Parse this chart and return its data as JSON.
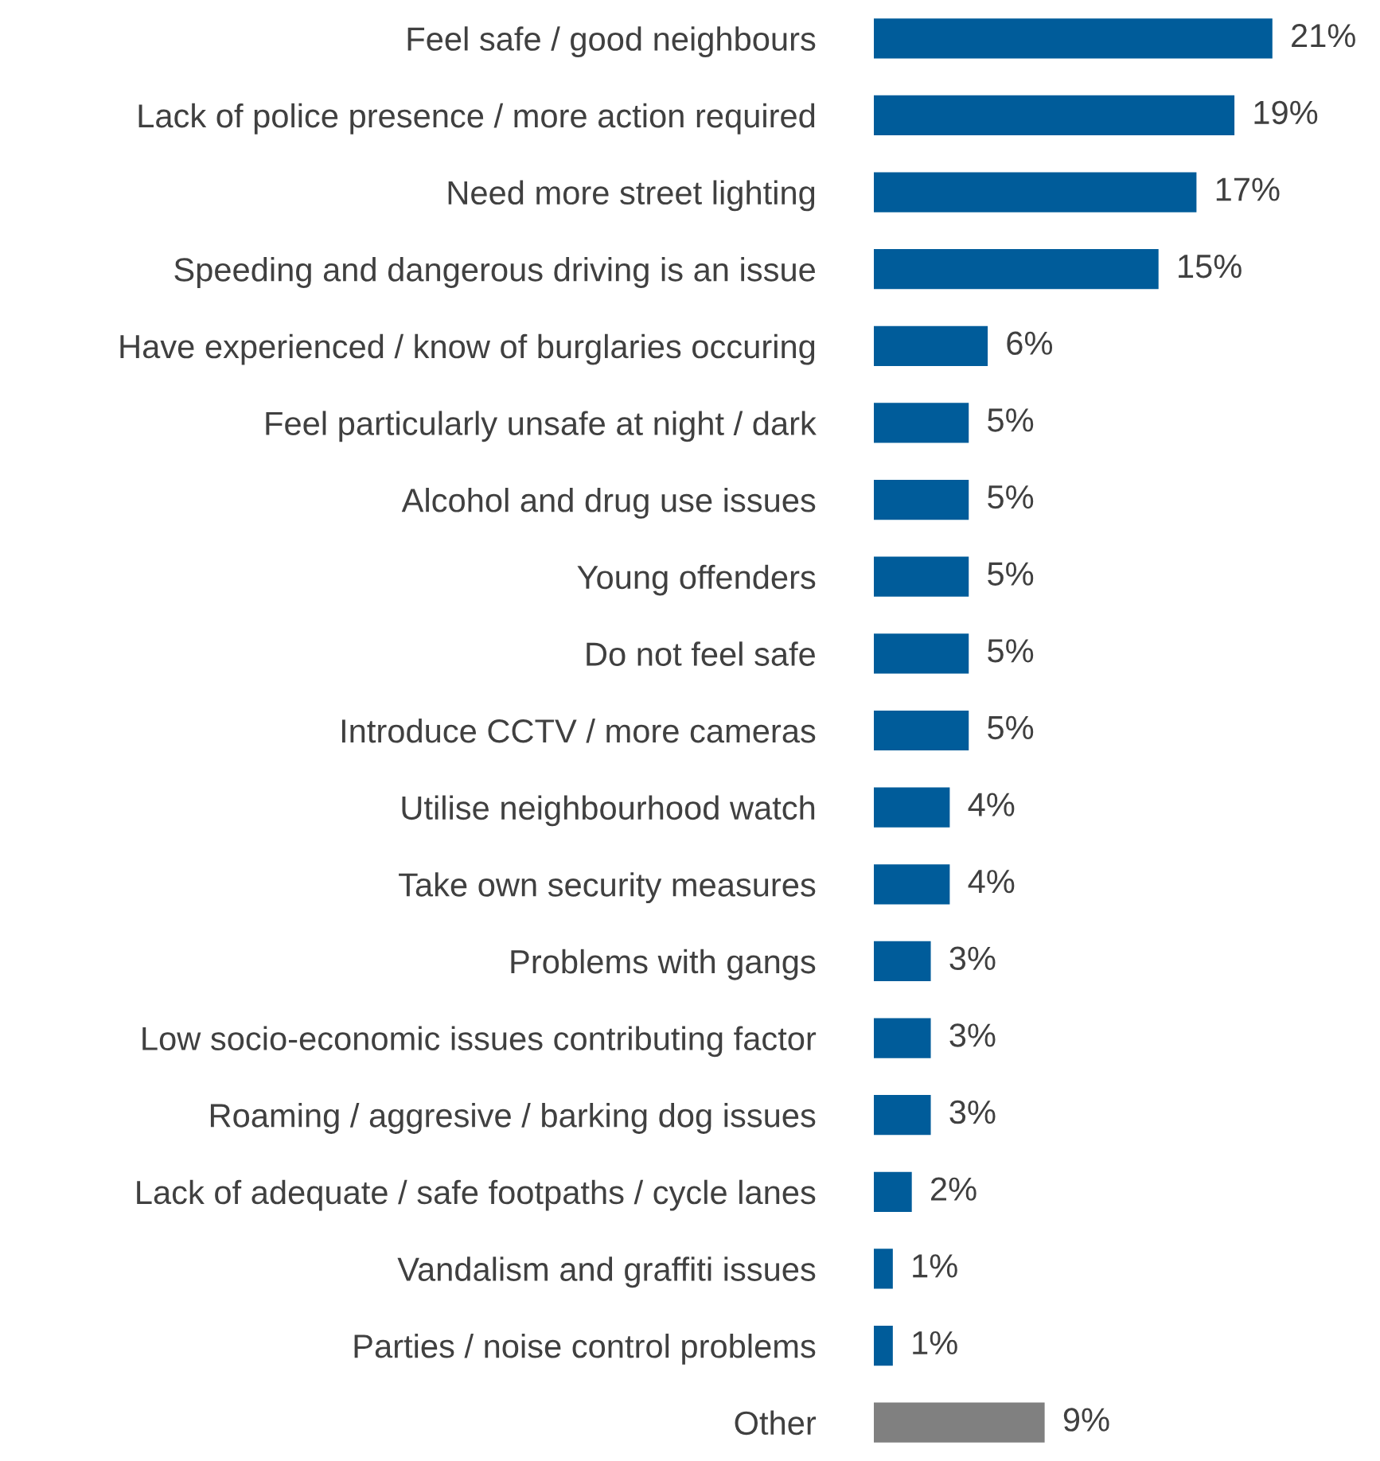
{
  "chart_data": {
    "type": "bar",
    "orientation": "horizontal",
    "categories": [
      "Feel safe / good neighbours",
      "Lack of police presence / more action required",
      "Need more street lighting",
      "Speeding and dangerous driving is an issue",
      "Have experienced / know of burglaries occuring",
      "Feel particularly unsafe at night / dark",
      "Alcohol and drug use issues",
      "Young offenders",
      "Do not feel safe",
      "Introduce CCTV / more cameras",
      "Utilise neighbourhood watch",
      "Take own security measures",
      "Problems with gangs",
      "Low socio-economic issues contributing factor",
      "Roaming / aggresive / barking dog issues",
      "Lack of adequate / safe footpaths / cycle lanes",
      "Vandalism and graffiti issues",
      "Parties / noise control problems",
      "Other"
    ],
    "values": [
      21,
      19,
      17,
      15,
      6,
      5,
      5,
      5,
      5,
      5,
      4,
      4,
      3,
      3,
      3,
      2,
      1,
      1,
      9
    ],
    "value_labels": [
      "21%",
      "19%",
      "17%",
      "15%",
      "6%",
      "5%",
      "5%",
      "5%",
      "5%",
      "5%",
      "4%",
      "4%",
      "3%",
      "3%",
      "3%",
      "2%",
      "1%",
      "1%",
      "9%"
    ],
    "colors": [
      "#005c9a",
      "#005c9a",
      "#005c9a",
      "#005c9a",
      "#005c9a",
      "#005c9a",
      "#005c9a",
      "#005c9a",
      "#005c9a",
      "#005c9a",
      "#005c9a",
      "#005c9a",
      "#005c9a",
      "#005c9a",
      "#005c9a",
      "#005c9a",
      "#005c9a",
      "#005c9a",
      "#808080"
    ]
  }
}
